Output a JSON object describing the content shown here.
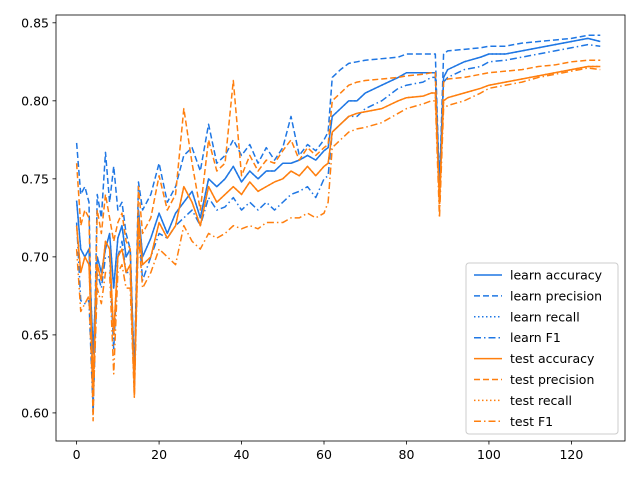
{
  "chart_data": {
    "type": "line",
    "xlim": [
      -5,
      133
    ],
    "ylim": [
      0.582,
      0.855
    ],
    "x_ticks": [
      0,
      20,
      40,
      60,
      80,
      100,
      120
    ],
    "y_ticks": [
      0.6,
      0.65,
      0.7,
      0.75,
      0.8,
      0.85
    ],
    "x_tick_labels": [
      "0",
      "20",
      "40",
      "60",
      "80",
      "100",
      "120"
    ],
    "y_tick_labels": [
      "0.60",
      "0.65",
      "0.70",
      "0.75",
      "0.80",
      "0.85"
    ],
    "grid": false,
    "legend_position": "lower-right",
    "colors": {
      "learn": "#1f77e4",
      "test": "#ff7f0e"
    },
    "anchors_x": [
      0,
      1,
      2,
      3,
      4,
      5,
      6,
      7,
      8,
      9,
      10,
      11,
      12,
      13,
      14,
      15,
      16,
      18,
      20,
      22,
      24,
      26,
      28,
      30,
      32,
      34,
      36,
      38,
      40,
      42,
      44,
      46,
      48,
      50,
      52,
      54,
      56,
      58,
      60,
      61,
      62,
      64,
      66,
      68,
      70,
      74,
      78,
      80,
      84,
      86,
      87,
      88,
      89,
      90,
      94,
      98,
      100,
      104,
      108,
      112,
      116,
      120,
      124,
      127
    ],
    "series": [
      {
        "name": "learn accuracy",
        "group": "learn",
        "dash": "solid",
        "values": [
          0.736,
          0.705,
          0.7,
          0.705,
          0.638,
          0.7,
          0.69,
          0.705,
          0.715,
          0.68,
          0.712,
          0.72,
          0.7,
          0.705,
          0.625,
          0.73,
          0.7,
          0.712,
          0.728,
          0.715,
          0.728,
          0.735,
          0.742,
          0.725,
          0.75,
          0.745,
          0.75,
          0.758,
          0.748,
          0.755,
          0.75,
          0.755,
          0.755,
          0.76,
          0.76,
          0.762,
          0.765,
          0.762,
          0.768,
          0.77,
          0.79,
          0.795,
          0.8,
          0.8,
          0.805,
          0.81,
          0.815,
          0.818,
          0.818,
          0.818,
          0.818,
          0.745,
          0.815,
          0.82,
          0.825,
          0.828,
          0.83,
          0.83,
          0.832,
          0.834,
          0.836,
          0.838,
          0.84,
          0.838
        ]
      },
      {
        "name": "learn precision",
        "group": "learn",
        "dash": "dashed",
        "values": [
          0.773,
          0.74,
          0.745,
          0.735,
          0.6,
          0.74,
          0.725,
          0.767,
          0.735,
          0.758,
          0.73,
          0.735,
          0.715,
          0.705,
          0.625,
          0.748,
          0.73,
          0.74,
          0.76,
          0.735,
          0.745,
          0.765,
          0.77,
          0.755,
          0.785,
          0.76,
          0.765,
          0.775,
          0.765,
          0.772,
          0.76,
          0.77,
          0.762,
          0.77,
          0.79,
          0.765,
          0.772,
          0.768,
          0.775,
          0.78,
          0.815,
          0.82,
          0.824,
          0.825,
          0.826,
          0.827,
          0.828,
          0.83,
          0.83,
          0.83,
          0.83,
          0.745,
          0.83,
          0.832,
          0.833,
          0.834,
          0.835,
          0.835,
          0.837,
          0.838,
          0.839,
          0.84,
          0.842,
          0.842
        ]
      },
      {
        "name": "learn recall",
        "group": "learn",
        "dash": "dotted",
        "values": [
          0.736,
          0.705,
          0.7,
          0.705,
          0.638,
          0.7,
          0.69,
          0.705,
          0.715,
          0.68,
          0.712,
          0.72,
          0.7,
          0.705,
          0.625,
          0.73,
          0.7,
          0.712,
          0.728,
          0.715,
          0.728,
          0.735,
          0.742,
          0.725,
          0.75,
          0.745,
          0.75,
          0.758,
          0.748,
          0.755,
          0.75,
          0.755,
          0.755,
          0.76,
          0.76,
          0.762,
          0.765,
          0.762,
          0.768,
          0.77,
          0.79,
          0.795,
          0.8,
          0.8,
          0.805,
          0.81,
          0.815,
          0.818,
          0.818,
          0.818,
          0.818,
          0.745,
          0.815,
          0.82,
          0.825,
          0.828,
          0.83,
          0.83,
          0.832,
          0.834,
          0.836,
          0.838,
          0.84,
          0.838
        ]
      },
      {
        "name": "learn F1",
        "group": "learn",
        "dash": "dashdot",
        "values": [
          0.722,
          0.672,
          0.67,
          0.672,
          0.6,
          0.69,
          0.68,
          0.7,
          0.7,
          0.64,
          0.7,
          0.71,
          0.69,
          0.69,
          0.615,
          0.72,
          0.685,
          0.7,
          0.715,
          0.712,
          0.72,
          0.725,
          0.73,
          0.72,
          0.738,
          0.73,
          0.732,
          0.738,
          0.73,
          0.735,
          0.73,
          0.735,
          0.73,
          0.735,
          0.74,
          0.742,
          0.745,
          0.738,
          0.75,
          0.752,
          0.78,
          0.785,
          0.79,
          0.79,
          0.795,
          0.8,
          0.808,
          0.81,
          0.812,
          0.815,
          0.815,
          0.74,
          0.812,
          0.815,
          0.82,
          0.822,
          0.825,
          0.826,
          0.828,
          0.83,
          0.832,
          0.834,
          0.836,
          0.835
        ]
      },
      {
        "name": "test accuracy",
        "group": "test",
        "dash": "solid",
        "values": [
          0.72,
          0.69,
          0.7,
          0.695,
          0.62,
          0.695,
          0.685,
          0.71,
          0.705,
          0.65,
          0.7,
          0.705,
          0.69,
          0.695,
          0.615,
          0.725,
          0.695,
          0.7,
          0.722,
          0.712,
          0.72,
          0.745,
          0.735,
          0.72,
          0.745,
          0.735,
          0.74,
          0.745,
          0.74,
          0.748,
          0.742,
          0.745,
          0.748,
          0.75,
          0.755,
          0.752,
          0.758,
          0.752,
          0.758,
          0.76,
          0.78,
          0.785,
          0.79,
          0.792,
          0.793,
          0.795,
          0.8,
          0.802,
          0.803,
          0.805,
          0.805,
          0.735,
          0.8,
          0.802,
          0.805,
          0.808,
          0.81,
          0.812,
          0.814,
          0.816,
          0.818,
          0.82,
          0.822,
          0.822
        ]
      },
      {
        "name": "test precision",
        "group": "test",
        "dash": "dashed",
        "values": [
          0.76,
          0.72,
          0.73,
          0.725,
          0.595,
          0.73,
          0.715,
          0.74,
          0.725,
          0.71,
          0.722,
          0.728,
          0.71,
          0.705,
          0.61,
          0.745,
          0.715,
          0.725,
          0.752,
          0.73,
          0.74,
          0.795,
          0.76,
          0.73,
          0.775,
          0.755,
          0.76,
          0.813,
          0.752,
          0.765,
          0.755,
          0.762,
          0.76,
          0.768,
          0.775,
          0.762,
          0.77,
          0.765,
          0.77,
          0.772,
          0.8,
          0.805,
          0.81,
          0.812,
          0.813,
          0.814,
          0.815,
          0.816,
          0.817,
          0.818,
          0.818,
          0.73,
          0.812,
          0.814,
          0.815,
          0.817,
          0.818,
          0.819,
          0.82,
          0.822,
          0.823,
          0.825,
          0.826,
          0.826
        ]
      },
      {
        "name": "test recall",
        "group": "test",
        "dash": "dotted",
        "values": [
          0.72,
          0.69,
          0.7,
          0.695,
          0.62,
          0.695,
          0.685,
          0.71,
          0.705,
          0.65,
          0.7,
          0.705,
          0.69,
          0.695,
          0.615,
          0.725,
          0.695,
          0.7,
          0.722,
          0.712,
          0.72,
          0.745,
          0.735,
          0.72,
          0.745,
          0.735,
          0.74,
          0.745,
          0.74,
          0.748,
          0.742,
          0.745,
          0.748,
          0.75,
          0.755,
          0.752,
          0.758,
          0.752,
          0.758,
          0.76,
          0.78,
          0.785,
          0.79,
          0.792,
          0.793,
          0.795,
          0.8,
          0.802,
          0.803,
          0.805,
          0.805,
          0.735,
          0.8,
          0.802,
          0.805,
          0.808,
          0.81,
          0.812,
          0.814,
          0.816,
          0.818,
          0.82,
          0.822,
          0.822
        ]
      },
      {
        "name": "test F1",
        "group": "test",
        "dash": "dashdot",
        "values": [
          0.705,
          0.665,
          0.67,
          0.675,
          0.605,
          0.68,
          0.67,
          0.69,
          0.69,
          0.625,
          0.69,
          0.695,
          0.68,
          0.68,
          0.61,
          0.715,
          0.68,
          0.69,
          0.705,
          0.7,
          0.695,
          0.72,
          0.71,
          0.705,
          0.715,
          0.712,
          0.715,
          0.72,
          0.718,
          0.72,
          0.718,
          0.722,
          0.722,
          0.722,
          0.725,
          0.725,
          0.728,
          0.725,
          0.728,
          0.735,
          0.77,
          0.775,
          0.78,
          0.782,
          0.783,
          0.786,
          0.792,
          0.795,
          0.798,
          0.8,
          0.8,
          0.725,
          0.795,
          0.797,
          0.8,
          0.805,
          0.808,
          0.81,
          0.812,
          0.815,
          0.817,
          0.819,
          0.821,
          0.82
        ]
      }
    ]
  }
}
